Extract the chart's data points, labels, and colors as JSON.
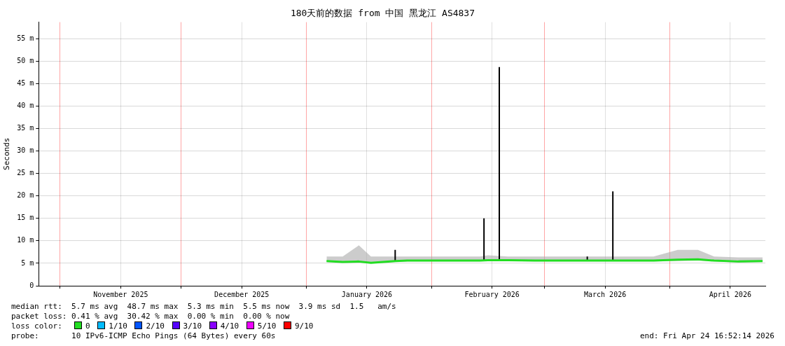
{
  "chart_data": {
    "type": "line",
    "title": "180天前的数据 from 中国 黑龙江 AS4837",
    "ylabel": "Seconds",
    "xlim": [
      "2025-10-26T16:52",
      "2026-04-24T16:52"
    ],
    "xticks": [
      {
        "value": "2025-11-01",
        "label": null
      },
      {
        "value": "2025-11-16",
        "label": "November 2025"
      },
      {
        "value": "2025-12-01",
        "label": null
      },
      {
        "value": "2025-12-16",
        "label": "December 2025"
      },
      {
        "value": "2026-01-01",
        "label": null
      },
      {
        "value": "2026-01-16",
        "label": "January 2026"
      },
      {
        "value": "2026-02-01",
        "label": null
      },
      {
        "value": "2026-02-16",
        "label": "February 2026"
      },
      {
        "value": "2026-03-01",
        "label": null
      },
      {
        "value": "2026-03-16",
        "label": "March 2026"
      },
      {
        "value": "2026-04-01",
        "label": null
      },
      {
        "value": "2026-04-16",
        "label": "April 2026"
      }
    ],
    "ylim": [
      0,
      58.7
    ],
    "yticks": [
      0,
      {
        "value": 5,
        "label": "5 m"
      },
      {
        "value": 10,
        "label": "10 m"
      },
      {
        "value": 15,
        "label": "15 m"
      },
      {
        "value": 20,
        "label": "20 m"
      },
      {
        "value": 25,
        "label": "25 m"
      },
      {
        "value": 30,
        "label": "30 m"
      },
      {
        "value": 35,
        "label": "35 m"
      },
      {
        "value": 40,
        "label": "40 m"
      },
      {
        "value": 45,
        "label": "45 m"
      },
      {
        "value": 50,
        "label": "50 m"
      },
      {
        "value": 55,
        "label": "55 m"
      }
    ],
    "grid": true,
    "marker": "none",
    "line_style": "solid",
    "series": [
      {
        "color": "#22dd22",
        "x": [
          "2026-01-06",
          "2026-01-10",
          "2026-01-14",
          "2026-01-17",
          "2026-01-20",
          "2026-01-23",
          "2026-01-26",
          "2026-02-01",
          "2026-02-08",
          "2026-02-13",
          "2026-02-15",
          "2026-02-20",
          "2026-02-28",
          "2026-03-10",
          "2026-03-20",
          "2026-03-28",
          "2026-04-03",
          "2026-04-08",
          "2026-04-12",
          "2026-04-18",
          "2026-04-24"
        ],
        "values": [
          5.5,
          5.3,
          5.4,
          5.1,
          5.3,
          5.5,
          5.6,
          5.6,
          5.6,
          5.6,
          5.7,
          5.7,
          5.6,
          5.6,
          5.6,
          5.6,
          5.8,
          5.9,
          5.6,
          5.4,
          5.5
        ],
        "lower": [
          5.3,
          5.2,
          5.2,
          5,
          5.2,
          5.3,
          5.4,
          5.4,
          5.4,
          5.4,
          5.5,
          5.5,
          5.4,
          5.4,
          5.4,
          5.4,
          5.5,
          5.6,
          5.4,
          5.2,
          5.3
        ],
        "upper": [
          6.5,
          6.5,
          9,
          6.5,
          6.5,
          6.5,
          6.5,
          6.5,
          6.5,
          6.5,
          6.8,
          6.5,
          6.5,
          6.5,
          6.5,
          6.5,
          8,
          8,
          6.5,
          6.3,
          6.3
        ]
      },
      {
        "color": "#000000",
        "x": [
          "2026-01-23T00:00",
          "2026-01-23T00:00",
          "2026-01-23T06:00",
          "2026-02-14T00:00",
          "2026-02-14T00:00",
          "2026-02-14T04:00",
          "2026-02-17T19:00",
          "2026-02-17T19:00",
          "2026-02-17T23:00",
          "2026-03-11T14:00",
          "2026-03-11T14:00",
          "2026-03-11T18:00",
          "2026-03-17T22:00",
          "2026-03-17T22:00"
        ],
        "values": [
          5.5,
          8,
          null,
          5.6,
          15,
          null,
          5.7,
          48.7,
          null,
          5.6,
          6.5,
          null,
          5.6,
          21
        ]
      }
    ],
    "annotations": [
      "median rtt:  5.7 ms avg  48.7 ms max  5.3 ms min  5.5 ms now  3.9 ms sd  1.5   am/s",
      "packet loss: 0.41 % avg  30.42 % max  0.00 % min  0.00 % now",
      "loss color:",
      "0",
      "1/10",
      "2/10",
      "3/10",
      "4/10",
      "5/10",
      "9/10",
      "probe:       10 IPv6-ICMP Echo Pings (64 Bytes) every 60s",
      "end: Fri Apr 24 16:52:14 2026"
    ]
  }
}
